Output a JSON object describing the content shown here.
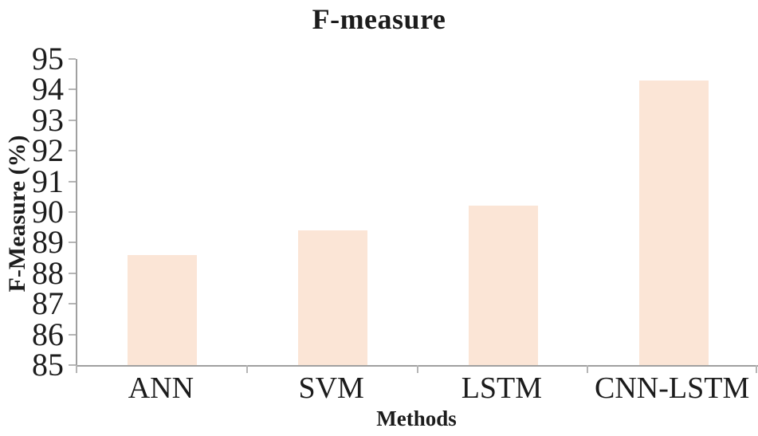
{
  "chart_data": {
    "type": "bar",
    "title": "F-measure",
    "xlabel": "Methods",
    "ylabel": "F-Measure (%)",
    "categories": [
      "ANN",
      "SVM",
      "LSTM",
      "CNN-LSTM"
    ],
    "values": [
      88.6,
      89.4,
      90.2,
      94.3
    ],
    "ylim": [
      85,
      95
    ],
    "yticks": [
      85,
      86,
      87,
      88,
      89,
      90,
      91,
      92,
      93,
      94,
      95
    ],
    "grid": false,
    "legend_position": "none",
    "bar_color": "#fbe5d6",
    "axis_color": "#a0a0a0",
    "tick_color": "#b5b5b5",
    "text_color": "#1c1c1c"
  }
}
